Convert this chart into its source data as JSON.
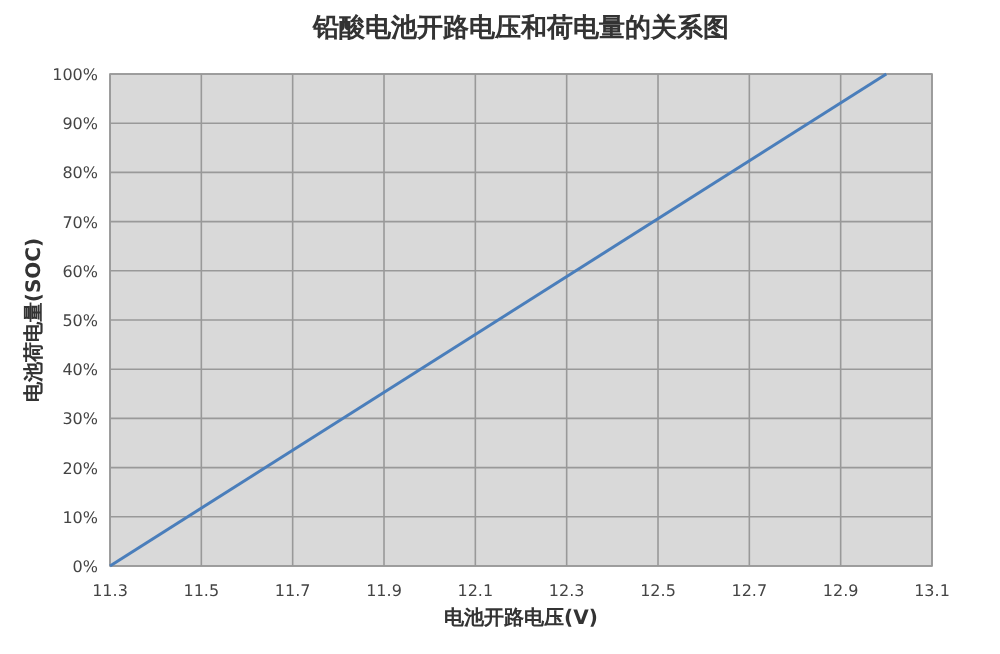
{
  "chart_data": {
    "type": "line",
    "title": "铅酸电池开路电压和荷电量的关系图",
    "xlabel": "电池开路电压(V)",
    "ylabel": "电池荷电量(SOC)",
    "x": [
      11.3,
      13.0
    ],
    "series": [
      {
        "color": "#4a7ebb",
        "values": [
          0,
          100
        ]
      }
    ],
    "xlim": [
      11.3,
      13.1
    ],
    "ylim": [
      0,
      100
    ],
    "xticks": [
      11.3,
      11.5,
      11.7,
      11.9,
      12.1,
      12.3,
      12.5,
      12.7,
      12.9,
      13.1
    ],
    "yticks": [
      {
        "value": 0,
        "label": "0%"
      },
      {
        "value": 10,
        "label": "10%"
      },
      {
        "value": 20,
        "label": "20%"
      },
      {
        "value": 30,
        "label": "30%"
      },
      {
        "value": 40,
        "label": "40%"
      },
      {
        "value": 50,
        "label": "50%"
      },
      {
        "value": 60,
        "label": "60%"
      },
      {
        "value": 70,
        "label": "70%"
      },
      {
        "value": 80,
        "label": "80%"
      },
      {
        "value": 90,
        "label": "90%"
      },
      {
        "value": 100,
        "label": "100%"
      }
    ],
    "grid": true
  }
}
